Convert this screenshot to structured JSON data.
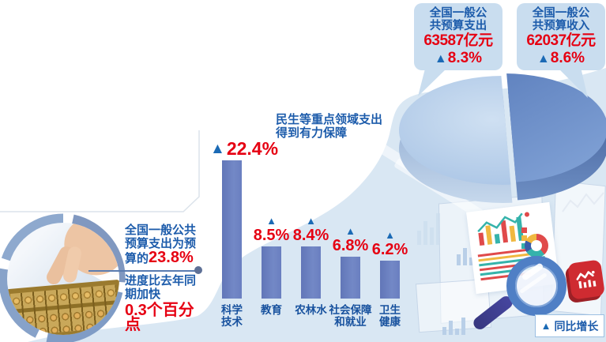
{
  "callouts": [
    {
      "line1": "全国一般公",
      "line2": "共预算支出",
      "amount": "63587亿元",
      "marker": "▲",
      "growth": "8.3%"
    },
    {
      "line1": "全国一般公",
      "line2": "共预算收入",
      "amount": "62037亿元",
      "marker": "▲",
      "growth": "8.6%"
    }
  ],
  "pie_note": {
    "line1": "民生等重点领域支出",
    "line2": "得到有力保障"
  },
  "left_note": {
    "para1_prefix": "全国一般公共预算支出为预算的",
    "para1_value": "23.8%",
    "para2": "进度比去年同期加快",
    "para2_value": "0.3个百分点"
  },
  "legend": {
    "marker": "▲",
    "label": "同比增长"
  },
  "chart_data": [
    {
      "type": "bar",
      "title": "民生等重点领域支出得到有力保障",
      "ylabel": "同比增长(%)",
      "categories": [
        "科学技术",
        "教育",
        "农林水",
        "社会保障和就业",
        "卫生健康"
      ],
      "values": [
        22.4,
        8.5,
        8.4,
        6.8,
        6.2
      ],
      "value_labels": [
        "22.4%",
        "8.5%",
        "8.4%",
        "6.8%",
        "6.2%"
      ],
      "marker": "▲",
      "items": [
        {
          "label": "科学技术",
          "label_lines": [
            "科学",
            "技术"
          ],
          "value": 22.4,
          "display": "22.4%",
          "layout": "row"
        },
        {
          "label": "教育",
          "label_lines": [
            "教育"
          ],
          "value": 8.5,
          "display": "8.5%",
          "layout": "column"
        },
        {
          "label": "农林水",
          "label_lines": [
            "农林水"
          ],
          "value": 8.4,
          "display": "8.4%",
          "layout": "column"
        },
        {
          "label": "社会保障和就业",
          "label_lines": [
            "社会保障",
            "和就业"
          ],
          "value": 6.8,
          "display": "6.8%",
          "layout": "column"
        },
        {
          "label": "卫生健康",
          "label_lines": [
            "卫生",
            "健康"
          ],
          "value": 6.2,
          "display": "6.2%",
          "layout": "column"
        }
      ],
      "legend": "▲同比增长"
    },
    {
      "type": "pie",
      "slices": [
        {
          "label": "全国一般公共预算支出",
          "amount": "63587亿元",
          "growth_pct": 8.3
        },
        {
          "label": "全国一般公共预算收入",
          "amount": "62037亿元",
          "growth_pct": 8.6
        }
      ],
      "annotations": [
        "民生等重点领域支出得到有力保障",
        "全国一般公共预算支出为预算的23.8%",
        "进度比去年同期加快0.3个百分点"
      ]
    }
  ],
  "colors": {
    "accent_red": "#e60012",
    "text_blue": "#1d5cab",
    "triangle_blue": "#1b6ab5",
    "bar_fill": "#6d82c1",
    "wave_blue": "#d9e7f3",
    "callout_bg": "#c9ddef",
    "pie_left": "#aac6e6",
    "pie_right": "#5d80bf",
    "logo_red": "#cf2b31"
  }
}
